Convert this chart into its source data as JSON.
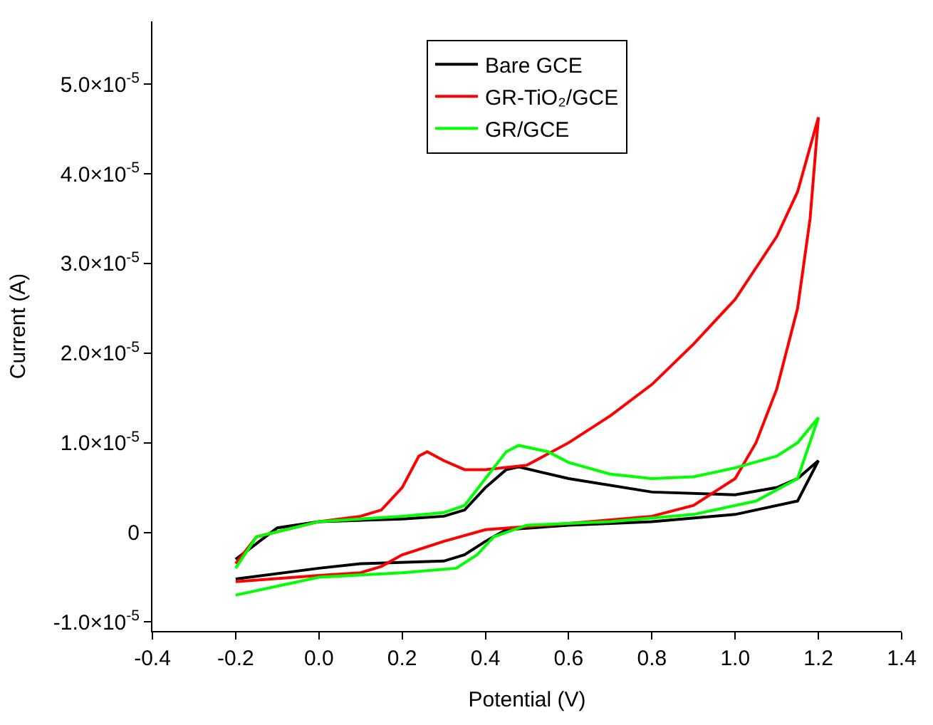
{
  "chart_data": {
    "type": "line",
    "xlabel": "Potential (V)",
    "ylabel": "Current (A)",
    "xlim": [
      -0.4,
      1.4
    ],
    "ylim": [
      -1.1e-05,
      5.7e-05
    ],
    "xticks": [
      {
        "value": -0.4,
        "label": "-0.4"
      },
      {
        "value": -0.2,
        "label": "-0.2"
      },
      {
        "value": 0,
        "label": "0.0"
      },
      {
        "value": 0.2,
        "label": "0.2"
      },
      {
        "value": 0.4,
        "label": "0.4"
      },
      {
        "value": 0.6,
        "label": "0.6"
      },
      {
        "value": 0.8,
        "label": "0.8"
      },
      {
        "value": 1.0,
        "label": "1.0"
      },
      {
        "value": 1.2,
        "label": "1.2"
      },
      {
        "value": 1.4,
        "label": "1.4"
      }
    ],
    "yticks": [
      {
        "value": -1e-05,
        "label": "-1.0×10$^{-5}$"
      },
      {
        "value": 0,
        "label": "0"
      },
      {
        "value": 1e-05,
        "label": "1.0×10$^{-5}$"
      },
      {
        "value": 2e-05,
        "label": "2.0×10$^{-5}$"
      },
      {
        "value": 3e-05,
        "label": "3.0×10$^{-5}$"
      },
      {
        "value": 4e-05,
        "label": "4.0×10$^{-5}$"
      },
      {
        "value": 5e-05,
        "label": "5.0×10$^{-5}$"
      }
    ],
    "legend": "top",
    "marker": "none",
    "line_style": "solid",
    "series": [
      {
        "name": "Bare GCE",
        "color": "#000000",
        "x": [
          -0.2,
          -0.1,
          0.0,
          0.2,
          0.3,
          0.35,
          0.4,
          0.45,
          0.48,
          0.6,
          0.8,
          1.0,
          1.1,
          1.15,
          1.2,
          1.15,
          1.0,
          0.8,
          0.6,
          0.45,
          0.4,
          0.35,
          0.3,
          0.1,
          0.0,
          -0.2
        ],
        "values": [
          -3e-06,
          5e-07,
          1.2e-06,
          1.5e-06,
          1.8e-06,
          2.5e-06,
          5e-06,
          7e-06,
          7.3e-06,
          6e-06,
          4.5e-06,
          4.2e-06,
          5e-06,
          6e-06,
          8e-06,
          3.5e-06,
          2e-06,
          1.2e-06,
          8e-07,
          3e-07,
          -1e-06,
          -2.5e-06,
          -3.2e-06,
          -3.5e-06,
          -4e-06,
          -5.2e-06
        ]
      },
      {
        "name": "GR-TiO₂/GCE",
        "color": "#ff0000",
        "x": [
          -0.2,
          -0.15,
          0.0,
          0.1,
          0.15,
          0.2,
          0.24,
          0.26,
          0.3,
          0.35,
          0.4,
          0.5,
          0.6,
          0.7,
          0.8,
          0.9,
          1.0,
          1.1,
          1.15,
          1.2,
          1.18,
          1.15,
          1.1,
          1.05,
          1.0,
          0.9,
          0.8,
          0.6,
          0.4,
          0.3,
          0.2,
          0.15,
          0.1,
          0.0,
          -0.2
        ],
        "values": [
          -3.5e-06,
          -5e-07,
          1.2e-06,
          1.8e-06,
          2.5e-06,
          5e-06,
          8.5e-06,
          9e-06,
          8e-06,
          7e-06,
          7e-06,
          7.5e-06,
          1e-05,
          1.3e-05,
          1.65e-05,
          2.1e-05,
          2.6e-05,
          3.3e-05,
          3.8e-05,
          4.63e-05,
          3.5e-05,
          2.5e-05,
          1.6e-05,
          1e-05,
          6e-06,
          3e-06,
          1.8e-06,
          1e-06,
          3e-07,
          -1e-06,
          -2.5e-06,
          -3.8e-06,
          -4.5e-06,
          -4.8e-06,
          -5.5e-06
        ]
      },
      {
        "name": "GR/GCE",
        "color": "#00ff00",
        "x": [
          -0.2,
          -0.15,
          0.0,
          0.2,
          0.3,
          0.35,
          0.4,
          0.45,
          0.48,
          0.55,
          0.6,
          0.7,
          0.8,
          0.9,
          1.0,
          1.1,
          1.15,
          1.2,
          1.15,
          1.05,
          0.9,
          0.7,
          0.5,
          0.42,
          0.38,
          0.33,
          0.2,
          0.0,
          -0.2
        ],
        "values": [
          -4e-06,
          -5e-07,
          1.2e-06,
          1.8e-06,
          2.2e-06,
          3e-06,
          6e-06,
          9e-06,
          9.7e-06,
          9e-06,
          7.8e-06,
          6.5e-06,
          6e-06,
          6.2e-06,
          7.2e-06,
          8.5e-06,
          1e-05,
          1.28e-05,
          6e-06,
          3.5e-06,
          2e-06,
          1.2e-06,
          8e-07,
          -5e-07,
          -2.5e-06,
          -4e-06,
          -4.5e-06,
          -5e-06,
          -7e-06
        ]
      }
    ]
  }
}
